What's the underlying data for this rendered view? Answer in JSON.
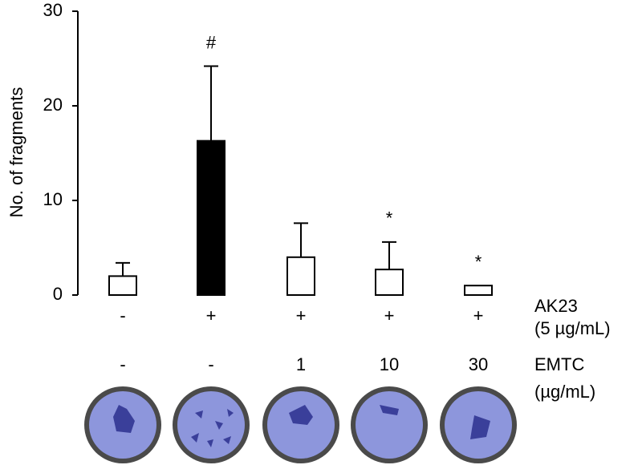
{
  "chart_data": {
    "type": "bar",
    "ylabel": "No. of fragments",
    "values": [
      2.0,
      16.3,
      4.0,
      2.7,
      1.0
    ],
    "errors": [
      1.4,
      7.9,
      3.6,
      2.9,
      null
    ],
    "colors": [
      "#ffffff",
      "#000000",
      "#ffffff",
      "#ffffff",
      "#ffffff"
    ],
    "annotations": [
      null,
      "#",
      null,
      "*",
      "*"
    ],
    "ylim": [
      0,
      30
    ],
    "yticks": [
      0,
      10,
      20,
      30
    ],
    "conditions": [
      {
        "label": "AK23",
        "unit": "(5 µg/mL)",
        "values": [
          "-",
          "+",
          "+",
          "+",
          "+"
        ]
      },
      {
        "label": "EMTC",
        "unit": "(µg/mL)",
        "values": [
          "-",
          "-",
          "1",
          "10",
          "30"
        ]
      }
    ]
  }
}
